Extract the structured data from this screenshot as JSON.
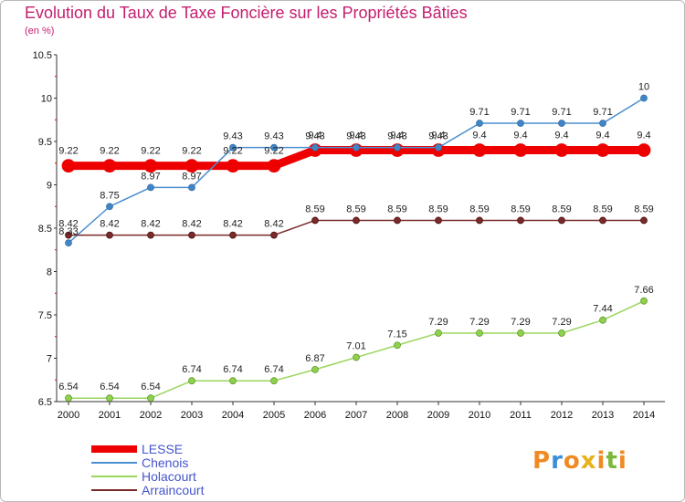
{
  "title": "Evolution du Taux de Taxe Foncière sur les Propriétés Bâties",
  "subtitle": "(en %)",
  "logo": {
    "text": "Proxiti",
    "letters": [
      "P",
      "r",
      "o",
      "x",
      "i",
      "t",
      "i"
    ],
    "colors": [
      "#f08a24",
      "#3a8fd8",
      "#f08a24",
      "#e8b21c",
      "#f08a24",
      "#7ab83a",
      "#f08a24"
    ]
  },
  "chart_data": {
    "type": "line",
    "title": "Evolution du Taux de Taxe Foncière sur les Propriétés Bâties",
    "ylabel": "(en %)",
    "xlabel": "",
    "x": [
      "2000",
      "2001",
      "2002",
      "2003",
      "2004",
      "2005",
      "2006",
      "2007",
      "2008",
      "2009",
      "2010",
      "2011",
      "2012",
      "2013",
      "2014"
    ],
    "ylim": [
      6.5,
      10.5
    ],
    "yticks": [
      "6.5",
      "7",
      "7.5",
      "8",
      "8.5",
      "9",
      "9.5",
      "10",
      "10.5"
    ],
    "grid": false,
    "legend_position": "bottom-left",
    "series": [
      {
        "name": "LESSE",
        "color": "#ee0000",
        "values": [
          9.22,
          9.22,
          9.22,
          9.22,
          9.22,
          9.22,
          9.4,
          9.4,
          9.4,
          9.4,
          9.4,
          9.4,
          9.4,
          9.4,
          9.4
        ],
        "labels": [
          "9.22",
          "9.22",
          "9.22",
          "9.22",
          "9.22",
          "9.22",
          "9.4",
          "9.4",
          "9.4",
          "9.4",
          "9.4",
          "9.4",
          "9.4",
          "9.4",
          "9.4"
        ]
      },
      {
        "name": "Chenois",
        "color": "#4a8fd0",
        "values": [
          8.33,
          8.75,
          8.97,
          8.97,
          9.43,
          9.43,
          9.43,
          9.43,
          9.43,
          9.43,
          9.71,
          9.71,
          9.71,
          9.71,
          10
        ],
        "labels": [
          "8.33",
          "8.75",
          "8.97",
          "8.97",
          "9.43",
          "9.43",
          "9.43",
          "9.43",
          "9.43",
          "9.43",
          "9.71",
          "9.71",
          "9.71",
          "9.71",
          "10"
        ]
      },
      {
        "name": "Holacourt",
        "color": "#99d65c",
        "values": [
          6.54,
          6.54,
          6.54,
          6.74,
          6.74,
          6.74,
          6.87,
          7.01,
          7.15,
          7.29,
          7.29,
          7.29,
          7.29,
          7.44,
          7.66
        ],
        "labels": [
          "6.54",
          "6.54",
          "6.54",
          "6.74",
          "6.74",
          "6.74",
          "6.87",
          "7.01",
          "7.15",
          "7.29",
          "7.29",
          "7.29",
          "7.29",
          "7.44",
          "7.66"
        ]
      },
      {
        "name": "Arraincourt",
        "color": "#7a2a2a",
        "values": [
          8.42,
          8.42,
          8.42,
          8.42,
          8.42,
          8.42,
          8.59,
          8.59,
          8.59,
          8.59,
          8.59,
          8.59,
          8.59,
          8.59,
          8.59
        ],
        "labels": [
          "8.42",
          "8.42",
          "8.42",
          "8.42",
          "8.42",
          "8.42",
          "8.59",
          "8.59",
          "8.59",
          "8.59",
          "8.59",
          "8.59",
          "8.59",
          "8.59",
          "8.59"
        ]
      }
    ]
  }
}
